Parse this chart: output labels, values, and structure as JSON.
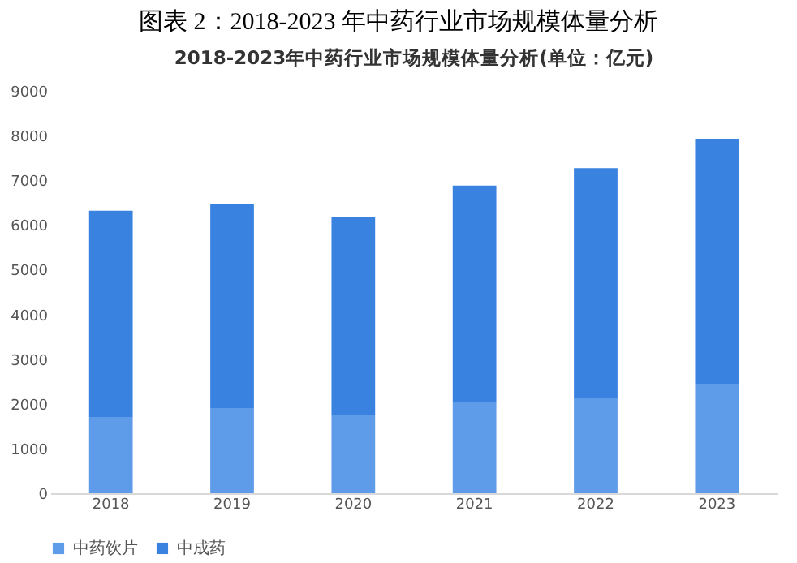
{
  "chart_data": {
    "type": "bar",
    "title": "图表 2：2018-2023 年中药行业市场规模体量分析",
    "subtitle": "2018-2023年中药行业市场规模体量分析(单位：亿元)",
    "categories": [
      "2018",
      "2019",
      "2020",
      "2021",
      "2022",
      "2023"
    ],
    "stacked": true,
    "series": [
      {
        "name": "中药饮片",
        "color": "#5e9be8",
        "values": [
          1690,
          1890,
          1740,
          2030,
          2130,
          2450
        ]
      },
      {
        "name": "中成药",
        "color": "#3a82e0",
        "values": [
          4630,
          4580,
          4430,
          4850,
          5140,
          5480
        ]
      }
    ],
    "ylim": [
      0,
      9000
    ],
    "yticks": [
      0,
      1000,
      2000,
      3000,
      4000,
      5000,
      6000,
      7000,
      8000,
      9000
    ],
    "grid": false,
    "legend": "bottom"
  }
}
